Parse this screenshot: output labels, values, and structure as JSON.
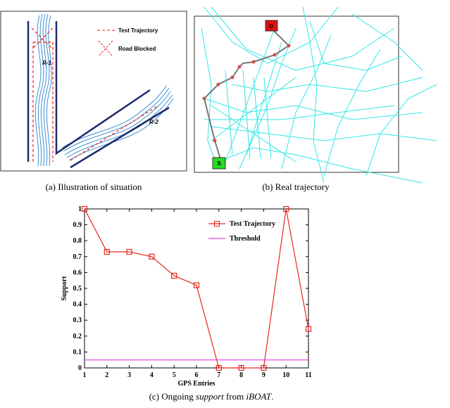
{
  "figure_a": {
    "caption": "(a) Illustration of situation",
    "legend": [
      "Test Trajectory",
      "Road Blocked"
    ],
    "road_labels": [
      "R-1",
      "R-2"
    ]
  },
  "figure_b": {
    "caption": "(b) Real trajectory",
    "markers": [
      "D",
      "S"
    ]
  },
  "chart_data": {
    "type": "line",
    "caption_parts": [
      "(c) Ongoing ",
      "support",
      " from ",
      "iBOAT",
      "."
    ],
    "xlabel": "GPS Entries",
    "ylabel": "Support",
    "x": [
      1,
      2,
      3,
      4,
      5,
      6,
      7,
      8,
      9,
      10,
      11
    ],
    "series": [
      {
        "name": "Test Trajectory",
        "color": "#e8261e",
        "values": [
          1,
          0.73,
          0.73,
          0.7,
          0.58,
          0.52,
          0,
          0,
          0,
          1,
          0.245
        ]
      },
      {
        "name": "Threshold",
        "color": "#e040e0",
        "values": [
          0.05,
          0.05,
          0.05,
          0.05,
          0.05,
          0.05,
          0.05,
          0.05,
          0.05,
          0.05,
          0.05
        ]
      }
    ],
    "xlim": [
      1,
      11
    ],
    "xticks": [
      1,
      2,
      3,
      4,
      5,
      6,
      7,
      8,
      9,
      10,
      11
    ],
    "ylim": [
      0,
      1
    ],
    "yticks": [
      0,
      0.1,
      0.2,
      0.3,
      0.4,
      0.5,
      0.6,
      0.7,
      0.8,
      0.9,
      1
    ]
  }
}
